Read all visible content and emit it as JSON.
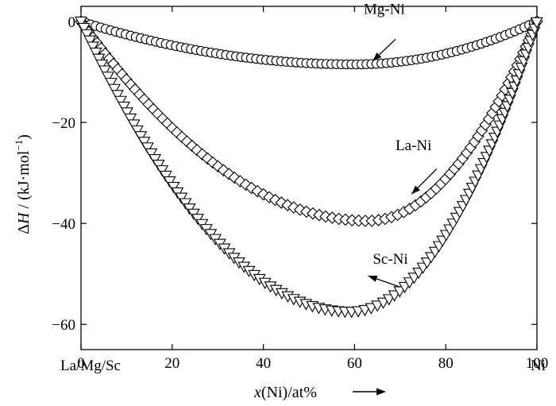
{
  "chart_data": {
    "type": "scatter",
    "xlim": [
      0,
      100
    ],
    "ylim": [
      -65,
      3
    ],
    "x_ticks": [
      0,
      20,
      40,
      60,
      80,
      100
    ],
    "x_tick_labels": [
      "0",
      "20",
      "40",
      "60",
      "80",
      "100"
    ],
    "y_ticks": [
      0,
      -20,
      -40,
      -60
    ],
    "y_tick_labels": [
      "0",
      "−20",
      "−40",
      "−60"
    ],
    "x_end_labels": {
      "left": "La/Mg/Sc",
      "right": "Ni"
    },
    "xlabel": {
      "var": "x",
      "rest": "(Ni)/at%"
    },
    "ylabel": {
      "delta": "Δ",
      "var": "H",
      "rest": " / (kJ·mol",
      "exp": "−1",
      "close": ")"
    },
    "grid": false,
    "series": [
      {
        "name": "Mg-Ni",
        "marker": "circle",
        "min_x": 60,
        "min_y": -8.5
      },
      {
        "name": "La-Ni",
        "marker": "diamond",
        "min_x": 63,
        "min_y": -39.5
      },
      {
        "name": "Sc-Ni",
        "marker": "triangle-down",
        "min_x": 59,
        "min_y": -57.5
      }
    ],
    "annotations": [
      {
        "text": "Mg-Ni",
        "series": "Mg-Ni",
        "label_at": [
          62,
          1.5
        ],
        "arrow_from": [
          69,
          -3.5
        ],
        "arrow_to": [
          64,
          -7.8
        ]
      },
      {
        "text": "La-Ni",
        "series": "La-Ni",
        "label_at": [
          69,
          -25.5
        ],
        "arrow_from": [
          78,
          -29.2
        ],
        "arrow_to": [
          72.5,
          -34.2
        ]
      },
      {
        "text": "Sc-Ni",
        "series": "Sc-Ni",
        "label_at": [
          64,
          -48
        ],
        "arrow_from": [
          70,
          -52.6
        ],
        "arrow_to": [
          63,
          -50.4
        ]
      }
    ]
  }
}
